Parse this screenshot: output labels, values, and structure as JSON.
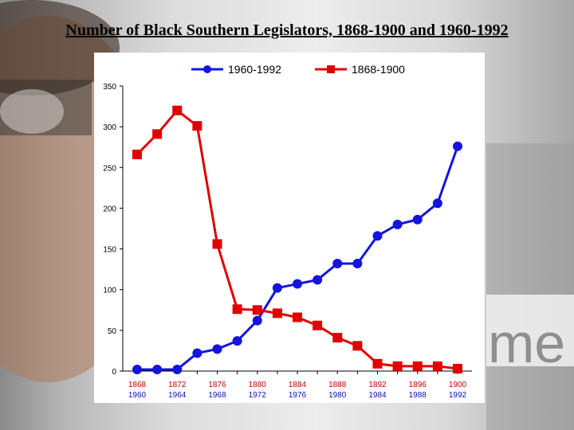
{
  "slide": {
    "title": "Number of Black Southern Legislators, 1868-1900 and 1960-1992"
  },
  "chart_data": {
    "type": "line",
    "title": "Number of Black Southern Legislators, 1868-1900 and 1960-1992",
    "xlabel": "",
    "ylabel": "",
    "ylim": [
      0,
      350
    ],
    "yticks": [
      0,
      50,
      100,
      150,
      200,
      250,
      300,
      350
    ],
    "grid": false,
    "legend_position": "top",
    "categories_top": [
      "1868",
      "",
      "1872",
      "",
      "1876",
      "",
      "1880",
      "",
      "1884",
      "",
      "1888",
      "",
      "1892",
      "",
      "1896",
      "",
      "1900"
    ],
    "categories_bottom": [
      "1960",
      "",
      "1964",
      "",
      "1968",
      "",
      "1972",
      "",
      "1976",
      "",
      "1980",
      "",
      "1984",
      "",
      "1988",
      "",
      "1992"
    ],
    "series": [
      {
        "name": "1960-1992",
        "color": "#1414dc",
        "marker": "circle",
        "values": [
          2,
          2,
          2,
          22,
          27,
          37,
          62,
          102,
          107,
          112,
          132,
          132,
          166,
          180,
          186,
          206,
          276
        ]
      },
      {
        "name": "1868-1900",
        "color": "#e00000",
        "marker": "square",
        "values": [
          266,
          291,
          320,
          301,
          156,
          76,
          75,
          71,
          66,
          56,
          41,
          31,
          9,
          6,
          6,
          6,
          3
        ]
      }
    ],
    "tick_label_colors": {
      "top": "#c00000",
      "bottom": "#1010b0"
    }
  }
}
